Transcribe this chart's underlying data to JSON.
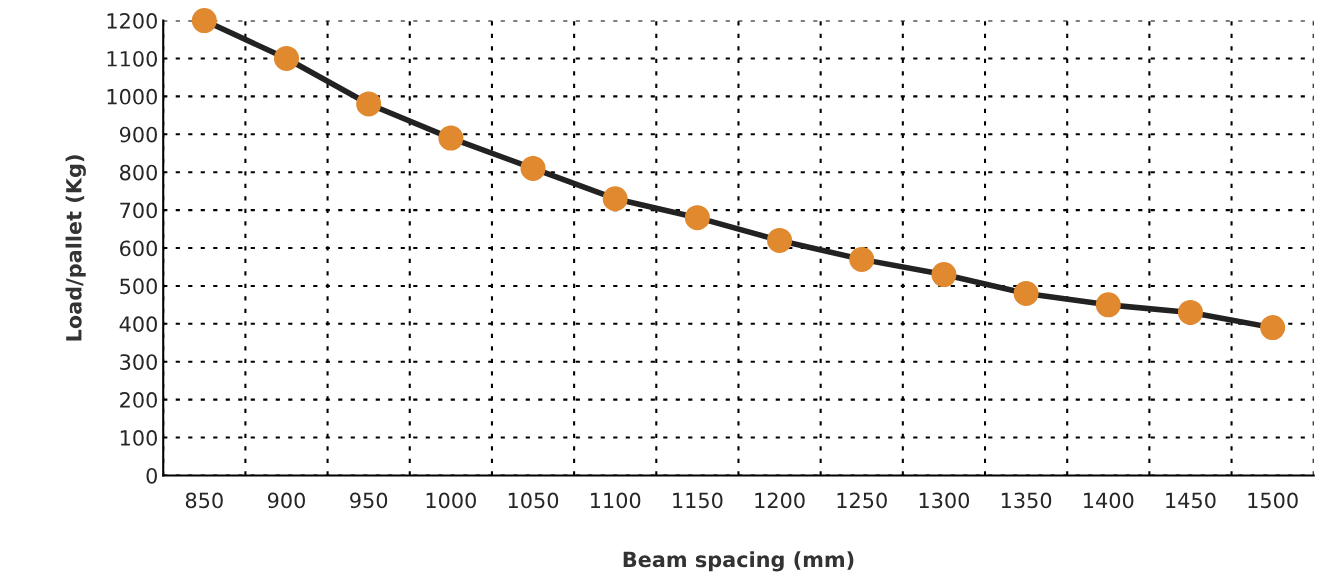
{
  "chart_data": {
    "type": "line",
    "xlabel": "Beam spacing (mm)",
    "ylabel": "Load/pallet (Kg)",
    "categories": [
      "850",
      "900",
      "950",
      "1000",
      "1050",
      "1100",
      "1150",
      "1200",
      "1250",
      "1300",
      "1350",
      "1400",
      "1450",
      "1500"
    ],
    "series": [
      {
        "color": "#e0892f",
        "values": [
          1200,
          1100,
          980,
          890,
          810,
          730,
          680,
          620,
          570,
          530,
          480,
          450,
          430,
          390
        ]
      }
    ],
    "ylim": [
      0,
      1200
    ],
    "yticks": [
      0,
      100,
      200,
      300,
      400,
      500,
      600,
      700,
      800,
      900,
      1000,
      1100,
      1200
    ],
    "grid": true,
    "marker": "circle",
    "line_style": "solid",
    "legend": false
  }
}
